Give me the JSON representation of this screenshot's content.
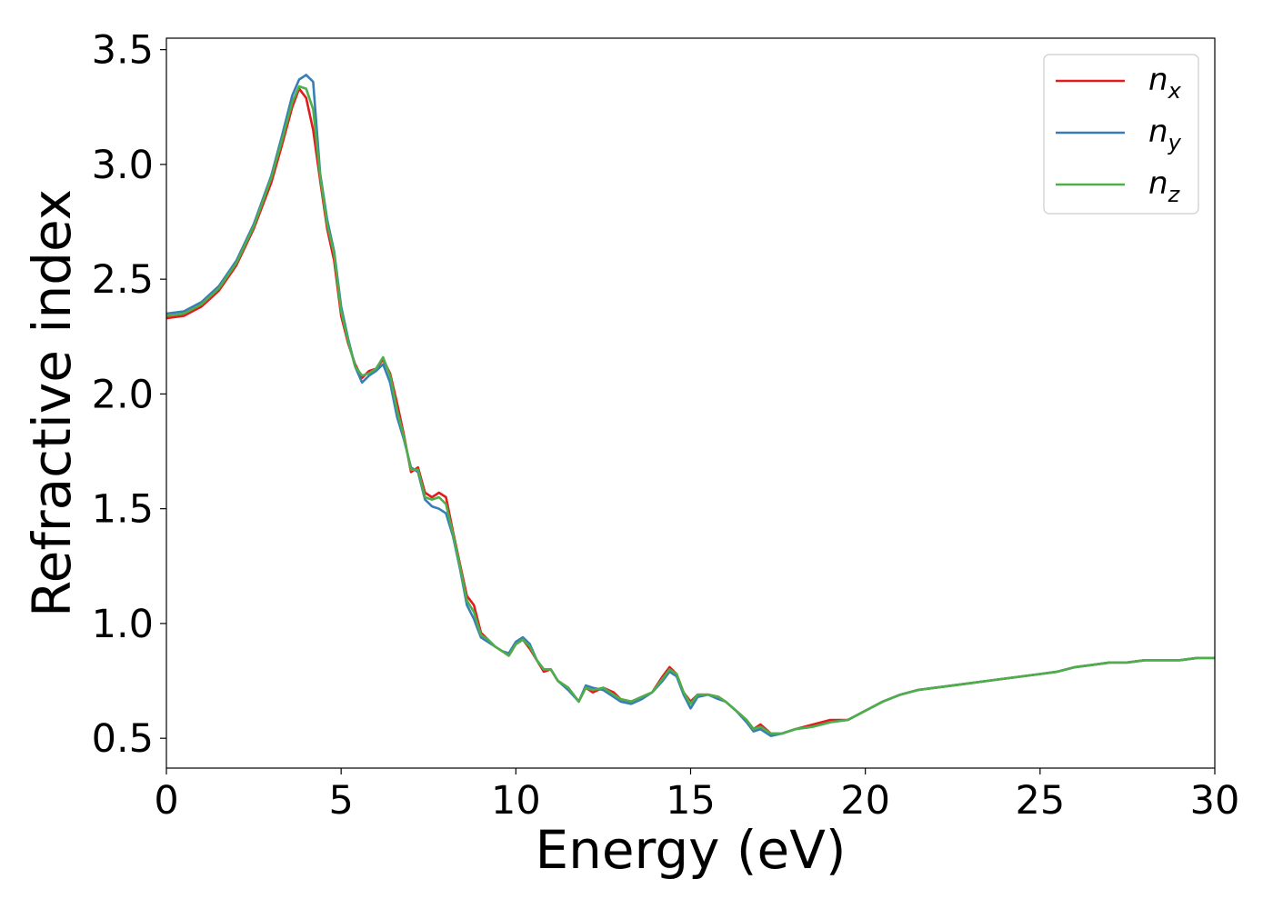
{
  "chart_data": {
    "type": "line",
    "title": "",
    "xlabel": "Energy (eV)",
    "ylabel": "Refractive index",
    "xlim": [
      0,
      30
    ],
    "ylim": [
      0.37,
      3.55
    ],
    "xticks": [
      0,
      5,
      10,
      15,
      20,
      25,
      30
    ],
    "xtick_labels": [
      "0",
      "5",
      "10",
      "15",
      "20",
      "25",
      "30"
    ],
    "yticks": [
      0.5,
      1.0,
      1.5,
      2.0,
      2.5,
      3.0,
      3.5
    ],
    "ytick_labels": [
      "0.5",
      "1.0",
      "1.5",
      "2.0",
      "2.5",
      "3.0",
      "3.5"
    ],
    "grid": false,
    "legend_position": "top-right",
    "x": [
      0,
      0.5,
      1,
      1.5,
      2,
      2.5,
      3,
      3.3,
      3.6,
      3.8,
      4.0,
      4.2,
      4.4,
      4.6,
      4.8,
      5.0,
      5.2,
      5.4,
      5.6,
      5.8,
      6.0,
      6.2,
      6.4,
      6.6,
      6.8,
      7.0,
      7.2,
      7.4,
      7.6,
      7.8,
      8.0,
      8.2,
      8.4,
      8.6,
      8.8,
      9.0,
      9.2,
      9.4,
      9.6,
      9.8,
      10.0,
      10.2,
      10.4,
      10.6,
      10.8,
      11.0,
      11.2,
      11.5,
      11.8,
      12.0,
      12.2,
      12.5,
      12.8,
      13.0,
      13.3,
      13.6,
      13.9,
      14.2,
      14.4,
      14.6,
      14.8,
      15.0,
      15.2,
      15.5,
      15.8,
      16.0,
      16.3,
      16.6,
      16.8,
      17.0,
      17.3,
      17.6,
      18.0,
      18.5,
      19.0,
      19.5,
      20.0,
      20.5,
      21.0,
      21.5,
      22.0,
      22.5,
      23.0,
      23.5,
      24.0,
      24.5,
      25.0,
      25.5,
      26.0,
      26.5,
      27.0,
      27.5,
      28.0,
      28.5,
      29.0,
      29.5,
      30.0
    ],
    "series": [
      {
        "name": "n_x",
        "label_base": "n",
        "label_sub": "x",
        "color": "#e41a1c",
        "values": [
          2.33,
          2.34,
          2.38,
          2.45,
          2.56,
          2.72,
          2.92,
          3.08,
          3.25,
          3.33,
          3.29,
          3.15,
          2.93,
          2.72,
          2.58,
          2.34,
          2.22,
          2.13,
          2.07,
          2.1,
          2.11,
          2.15,
          2.09,
          1.96,
          1.82,
          1.66,
          1.68,
          1.57,
          1.55,
          1.57,
          1.55,
          1.4,
          1.26,
          1.12,
          1.08,
          0.96,
          0.93,
          0.9,
          0.88,
          0.86,
          0.91,
          0.93,
          0.89,
          0.84,
          0.79,
          0.8,
          0.75,
          0.72,
          0.66,
          0.72,
          0.7,
          0.72,
          0.7,
          0.67,
          0.66,
          0.68,
          0.7,
          0.77,
          0.81,
          0.78,
          0.7,
          0.66,
          0.69,
          0.69,
          0.68,
          0.66,
          0.62,
          0.58,
          0.54,
          0.56,
          0.52,
          0.52,
          0.54,
          0.56,
          0.58,
          0.58,
          0.62,
          0.66,
          0.69,
          0.71,
          0.72,
          0.73,
          0.74,
          0.75,
          0.76,
          0.77,
          0.78,
          0.79,
          0.81,
          0.82,
          0.83,
          0.83,
          0.84,
          0.84,
          0.84,
          0.85,
          0.85
        ]
      },
      {
        "name": "n_y",
        "label_base": "n",
        "label_sub": "y",
        "color": "#377eb8",
        "values": [
          2.35,
          2.36,
          2.4,
          2.47,
          2.58,
          2.74,
          2.95,
          3.12,
          3.3,
          3.37,
          3.39,
          3.36,
          2.96,
          2.76,
          2.62,
          2.38,
          2.24,
          2.12,
          2.05,
          2.08,
          2.1,
          2.13,
          2.05,
          1.9,
          1.8,
          1.68,
          1.66,
          1.54,
          1.51,
          1.5,
          1.48,
          1.38,
          1.24,
          1.08,
          1.02,
          0.94,
          0.92,
          0.9,
          0.88,
          0.87,
          0.92,
          0.94,
          0.91,
          0.84,
          0.8,
          0.8,
          0.75,
          0.71,
          0.66,
          0.73,
          0.72,
          0.71,
          0.68,
          0.66,
          0.65,
          0.67,
          0.7,
          0.75,
          0.79,
          0.77,
          0.69,
          0.63,
          0.68,
          0.69,
          0.67,
          0.66,
          0.62,
          0.57,
          0.53,
          0.54,
          0.51,
          0.52,
          0.54,
          0.55,
          0.57,
          0.58,
          0.62,
          0.66,
          0.69,
          0.71,
          0.72,
          0.73,
          0.74,
          0.75,
          0.76,
          0.77,
          0.78,
          0.79,
          0.81,
          0.82,
          0.83,
          0.83,
          0.84,
          0.84,
          0.84,
          0.85,
          0.85
        ]
      },
      {
        "name": "n_z",
        "label_base": "n",
        "label_sub": "z",
        "color": "#4daf4a",
        "values": [
          2.34,
          2.35,
          2.39,
          2.46,
          2.57,
          2.73,
          2.94,
          3.1,
          3.27,
          3.34,
          3.33,
          3.24,
          2.95,
          2.74,
          2.61,
          2.36,
          2.23,
          2.12,
          2.08,
          2.09,
          2.11,
          2.16,
          2.08,
          1.93,
          1.81,
          1.67,
          1.67,
          1.55,
          1.54,
          1.55,
          1.52,
          1.39,
          1.25,
          1.1,
          1.05,
          0.95,
          0.93,
          0.9,
          0.88,
          0.86,
          0.91,
          0.93,
          0.9,
          0.84,
          0.8,
          0.8,
          0.75,
          0.72,
          0.66,
          0.72,
          0.71,
          0.72,
          0.69,
          0.67,
          0.66,
          0.68,
          0.7,
          0.76,
          0.8,
          0.78,
          0.7,
          0.65,
          0.69,
          0.69,
          0.68,
          0.66,
          0.62,
          0.58,
          0.54,
          0.55,
          0.52,
          0.52,
          0.54,
          0.55,
          0.57,
          0.58,
          0.62,
          0.66,
          0.69,
          0.71,
          0.72,
          0.73,
          0.74,
          0.75,
          0.76,
          0.77,
          0.78,
          0.79,
          0.81,
          0.82,
          0.83,
          0.83,
          0.84,
          0.84,
          0.84,
          0.85,
          0.85
        ]
      }
    ]
  }
}
